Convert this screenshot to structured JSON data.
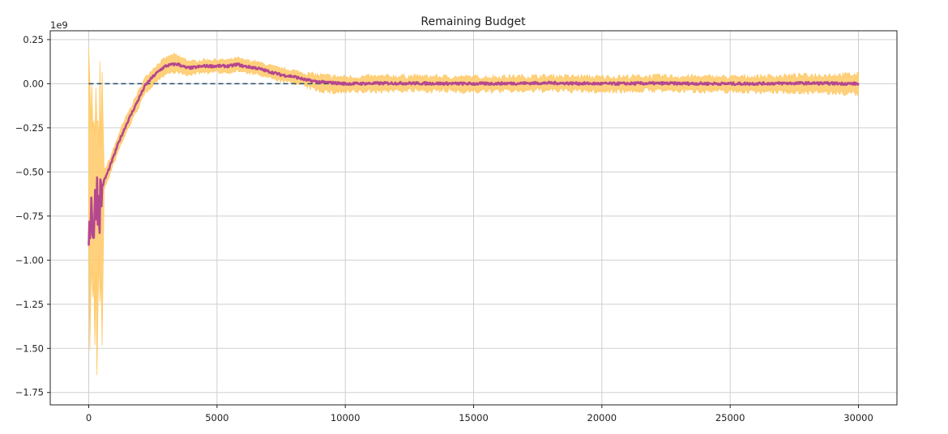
{
  "chart_data": {
    "type": "line",
    "title": "Remaining Budget",
    "xlabel": "",
    "ylabel": "",
    "y_scale_label": "1e9",
    "xlim": [
      -1500,
      31500
    ],
    "ylim": [
      -1.82,
      0.3
    ],
    "x_ticks": [
      0,
      5000,
      10000,
      15000,
      20000,
      25000,
      30000
    ],
    "x_tick_labels": [
      "0",
      "5000",
      "10000",
      "15000",
      "20000",
      "25000",
      "30000"
    ],
    "y_ticks": [
      0.25,
      0.0,
      -0.25,
      -0.5,
      -0.75,
      -1.0,
      -1.25,
      -1.5,
      -1.75
    ],
    "y_tick_labels": [
      "0.25",
      "0.00",
      "−0.25",
      "−0.50",
      "−0.75",
      "−1.00",
      "−1.25",
      "−1.50",
      "−1.75"
    ],
    "grid": true,
    "legend": "none",
    "series": [
      {
        "role": "mean",
        "color": "#b5478f",
        "x": [
          0,
          100,
          200,
          300,
          400,
          500,
          600,
          800,
          1000,
          1200,
          1500,
          1800,
          2000,
          2200,
          2500,
          2800,
          3000,
          3300,
          3500,
          3800,
          4000,
          4500,
          5000,
          5500,
          5800,
          6000,
          6500,
          7000,
          7500,
          8000,
          8500,
          9000,
          9500,
          10000,
          12000,
          15000,
          18000,
          20000,
          22000,
          25000,
          28000,
          30000
        ],
        "y": [
          -0.8,
          -0.7,
          -0.82,
          -0.6,
          -0.7,
          -0.6,
          -0.55,
          -0.48,
          -0.4,
          -0.32,
          -0.22,
          -0.13,
          -0.07,
          -0.01,
          0.04,
          0.08,
          0.1,
          0.11,
          0.11,
          0.09,
          0.09,
          0.1,
          0.1,
          0.1,
          0.11,
          0.1,
          0.09,
          0.07,
          0.05,
          0.04,
          0.02,
          0.01,
          0.005,
          0.0,
          0.003,
          0.0,
          0.004,
          0.0,
          0.002,
          0.0,
          0.003,
          0.0
        ]
      },
      {
        "role": "upper-band",
        "color": "#ffc966",
        "x": [
          0,
          500,
          600,
          800,
          1000,
          1200,
          1500,
          1800,
          2000,
          2200,
          2500,
          2800,
          3000,
          3300,
          3500,
          3800,
          4000,
          4500,
          5000,
          5500,
          5800,
          6000,
          6500,
          7000,
          7500,
          8000,
          8500,
          9000,
          9500,
          10000,
          12000,
          15000,
          18000,
          20000,
          22000,
          25000,
          28000,
          30000
        ],
        "y": [
          0.2,
          0.2,
          -0.5,
          -0.44,
          -0.36,
          -0.28,
          -0.18,
          -0.09,
          -0.03,
          0.03,
          0.08,
          0.12,
          0.14,
          0.16,
          0.15,
          0.13,
          0.12,
          0.13,
          0.13,
          0.13,
          0.14,
          0.13,
          0.12,
          0.1,
          0.08,
          0.07,
          0.05,
          0.04,
          0.035,
          0.03,
          0.035,
          0.03,
          0.035,
          0.03,
          0.035,
          0.03,
          0.04,
          0.045
        ]
      },
      {
        "role": "lower-band",
        "color": "#ffc966",
        "x": [
          0,
          500,
          600,
          800,
          1000,
          1200,
          1500,
          1800,
          2000,
          2200,
          2500,
          2800,
          3000,
          3300,
          3500,
          3800,
          4000,
          4500,
          5000,
          5500,
          5800,
          6000,
          6500,
          7000,
          7500,
          8000,
          8500,
          9000,
          9500,
          10000,
          12000,
          15000,
          18000,
          20000,
          22000,
          25000,
          28000,
          30000
        ],
        "y": [
          -1.7,
          -1.7,
          -0.6,
          -0.52,
          -0.44,
          -0.36,
          -0.26,
          -0.17,
          -0.11,
          -0.05,
          0.0,
          0.04,
          0.06,
          0.07,
          0.07,
          0.05,
          0.06,
          0.07,
          0.07,
          0.07,
          0.08,
          0.07,
          0.06,
          0.04,
          0.02,
          0.01,
          -0.01,
          -0.03,
          -0.04,
          -0.04,
          -0.03,
          -0.035,
          -0.03,
          -0.035,
          -0.03,
          -0.035,
          -0.04,
          -0.05
        ]
      },
      {
        "role": "zero-reference",
        "color": "#1f4e6b",
        "style": "dashed",
        "x": [
          0,
          30000
        ],
        "y": [
          0.0,
          0.0
        ]
      }
    ]
  }
}
